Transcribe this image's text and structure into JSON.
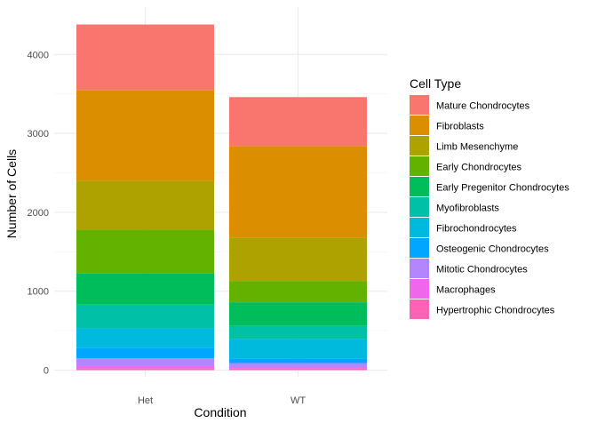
{
  "chart_data": {
    "type": "bar",
    "stacked": true,
    "categories": [
      "Het",
      "WT"
    ],
    "xlabel": "Condition",
    "ylabel": "Number of Cells",
    "ylim": [
      0,
      4500
    ],
    "yticks": [
      0,
      1000,
      2000,
      3000,
      4000
    ],
    "grid": true,
    "legend_position": "right",
    "legend_title": "Cell Type",
    "series": [
      {
        "name": "Mature Chondrocytes",
        "color": "#F8766D",
        "values": [
          830,
          620
        ]
      },
      {
        "name": "Fibroblasts",
        "color": "#DB8E00",
        "values": [
          1150,
          1160
        ]
      },
      {
        "name": "Limb Mesenchyme",
        "color": "#AEA200",
        "values": [
          620,
          550
        ]
      },
      {
        "name": "Early Chondrocytes",
        "color": "#64B200",
        "values": [
          550,
          270
        ]
      },
      {
        "name": "Early Pregenitor Chondrocytes",
        "color": "#00BD5C",
        "values": [
          400,
          300
        ]
      },
      {
        "name": "Myofibroblasts",
        "color": "#00C1A7",
        "values": [
          300,
          170
        ]
      },
      {
        "name": "Fibrochondrocytes",
        "color": "#00BADE",
        "values": [
          250,
          240
        ]
      },
      {
        "name": "Osteogenic Chondrocytes",
        "color": "#00A6FF",
        "values": [
          130,
          60
        ]
      },
      {
        "name": "Mitotic Chondrocytes",
        "color": "#B385FF",
        "values": [
          100,
          50
        ]
      },
      {
        "name": "Macrophages",
        "color": "#EF67EB",
        "values": [
          30,
          20
        ]
      },
      {
        "name": "Hypertrophic Chondrocytes",
        "color": "#FF63B6",
        "values": [
          20,
          20
        ]
      }
    ]
  }
}
